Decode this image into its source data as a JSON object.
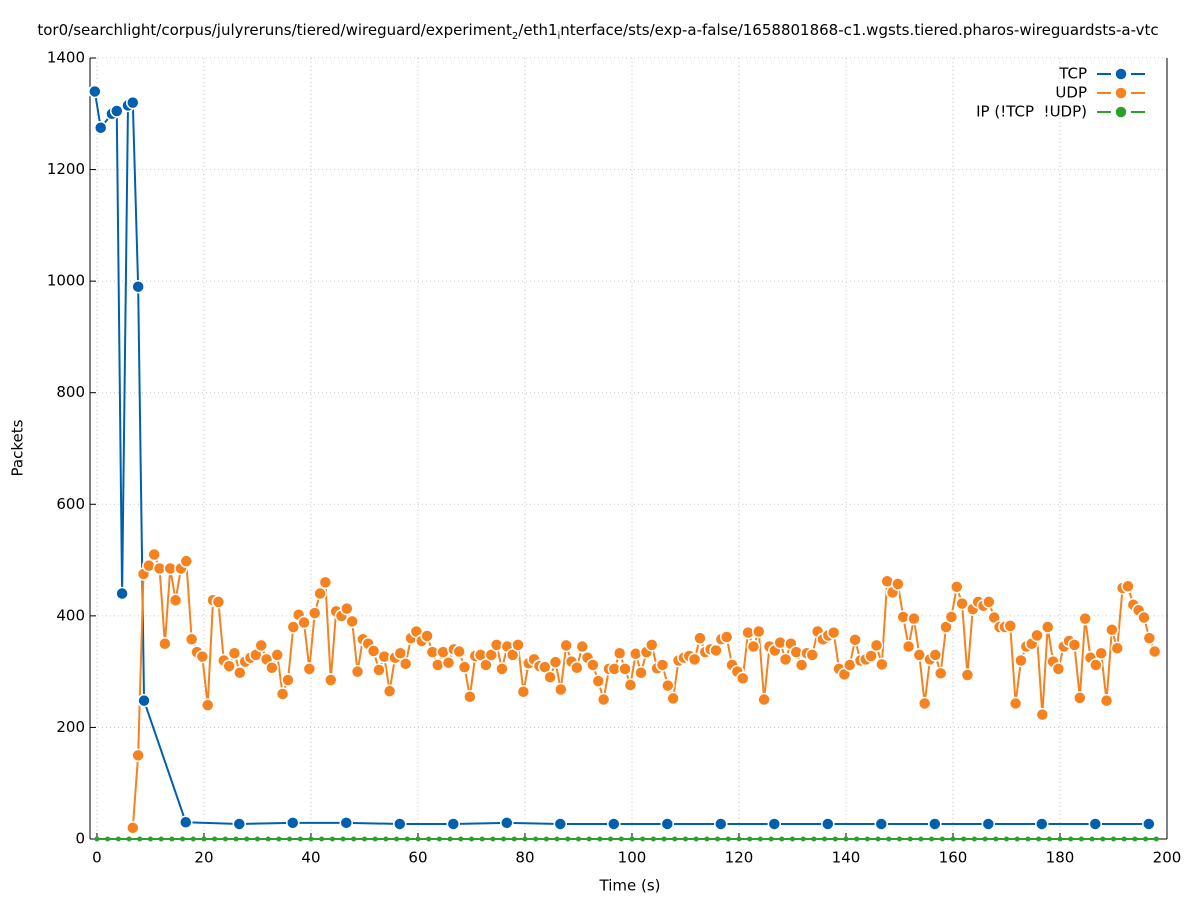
{
  "chart_data": {
    "type": "line",
    "title": [
      "tor0/searchlight/corpus/julyreruns/tiered/wireguard/experiment",
      "2",
      "/eth1",
      "i",
      "nterface/sts/exp-a-false/1658801868-c1.wgsts.tiered.pharos-wireguardsts-a-vtc"
    ],
    "xlabel": "Time (s)",
    "ylabel": "Packets",
    "xlim": [
      -1.3,
      200
    ],
    "ylim": [
      0,
      1400
    ],
    "xticks": [
      0,
      20,
      40,
      60,
      80,
      100,
      120,
      140,
      160,
      180,
      200
    ],
    "yticks": [
      0,
      200,
      400,
      600,
      800,
      1000,
      1200,
      1400
    ],
    "grid": true,
    "legend": "top-right",
    "series": [
      {
        "name": "TCP",
        "color": "#0060ad",
        "x": [
          -0.4,
          0.7,
          2.8,
          3.7,
          4.7,
          5.8,
          6.7,
          7.7,
          8.8,
          16.6,
          26.6,
          36.6,
          46.6,
          56.6,
          66.6,
          76.6,
          86.6,
          96.6,
          106.6,
          116.6,
          126.6,
          136.6,
          146.6,
          156.6,
          166.6,
          176.6,
          186.6,
          196.6
        ],
        "values": [
          1340,
          1275,
          1300,
          1305,
          440,
          1315,
          1320,
          990,
          248,
          30,
          27,
          29,
          29,
          27,
          27,
          29,
          27,
          27,
          27,
          27,
          27,
          27,
          27,
          27,
          27,
          27,
          27,
          27
        ]
      },
      {
        "name": "UDP",
        "color": "#f5821f",
        "x": [
          6.7,
          7.7,
          8.7,
          9.7,
          10.7,
          11.7,
          12.7,
          13.7,
          14.7,
          15.7,
          16.7,
          17.7,
          18.7,
          19.7,
          20.7,
          21.7,
          22.7,
          23.7,
          24.7,
          25.7,
          26.7,
          27.7,
          28.7,
          29.7,
          30.7,
          31.7,
          32.7,
          33.7,
          34.7,
          35.7,
          36.7,
          37.7,
          38.7,
          39.7,
          40.7,
          41.7,
          42.7,
          43.7,
          44.7,
          45.7,
          46.7,
          47.7,
          48.7,
          49.7,
          50.7,
          51.7,
          52.7,
          53.7,
          54.7,
          55.7,
          56.7,
          57.7,
          58.7,
          59.7,
          60.7,
          61.7,
          62.7,
          63.7,
          64.7,
          65.7,
          66.7,
          67.7,
          68.7,
          69.7,
          70.7,
          71.7,
          72.7,
          73.7,
          74.7,
          75.7,
          76.7,
          77.7,
          78.7,
          79.7,
          80.7,
          81.7,
          82.7,
          83.7,
          84.7,
          85.7,
          86.7,
          87.7,
          88.7,
          89.7,
          90.7,
          91.7,
          92.7,
          93.7,
          94.7,
          95.7,
          96.7,
          97.7,
          98.7,
          99.7,
          100.7,
          101.7,
          102.7,
          103.7,
          104.7,
          105.7,
          106.7,
          107.7,
          108.7,
          109.7,
          110.7,
          111.7,
          112.7,
          113.7,
          114.7,
          115.7,
          116.7,
          117.7,
          118.7,
          119.7,
          120.7,
          121.7,
          122.7,
          123.7,
          124.7,
          125.7,
          126.7,
          127.7,
          128.7,
          129.7,
          130.7,
          131.7,
          132.7,
          133.7,
          134.7,
          135.7,
          136.7,
          137.7,
          138.7,
          139.7,
          140.7,
          141.7,
          142.7,
          143.7,
          144.7,
          145.7,
          146.7,
          147.7,
          148.7,
          149.7,
          150.7,
          151.7,
          152.7,
          153.7,
          154.7,
          155.7,
          156.7,
          157.7,
          158.7,
          159.7,
          160.7,
          161.7,
          162.7,
          163.7,
          164.7,
          165.7,
          166.7,
          167.7,
          168.7,
          169.7,
          170.7,
          171.7,
          172.7,
          173.7,
          174.7,
          175.7,
          176.7,
          177.7,
          178.7,
          179.7,
          180.7,
          181.7,
          182.7,
          183.7,
          184.7,
          185.7,
          186.7,
          187.7,
          188.7,
          189.7,
          190.7,
          191.7,
          192.7,
          193.7,
          194.7,
          195.7,
          196.7,
          197.7
        ],
        "values": [
          20,
          150,
          475,
          490,
          510,
          485,
          350,
          485,
          428,
          485,
          498,
          358,
          335,
          327,
          240,
          428,
          425,
          320,
          310,
          333,
          298,
          318,
          325,
          330,
          347,
          322,
          307,
          330,
          260,
          285,
          380,
          402,
          388,
          305,
          405,
          440,
          460,
          285,
          408,
          400,
          413,
          390,
          300,
          358,
          350,
          337,
          303,
          327,
          265,
          325,
          333,
          314,
          360,
          372,
          355,
          364,
          335,
          312,
          335,
          316,
          340,
          336,
          308,
          255,
          328,
          330,
          312,
          330,
          348,
          305,
          345,
          330,
          348,
          264,
          315,
          322,
          310,
          308,
          290,
          317,
          268,
          347,
          318,
          307,
          345,
          325,
          312,
          283,
          250,
          305,
          305,
          333,
          305,
          276,
          332,
          298,
          335,
          348,
          306,
          312,
          275,
          252,
          320,
          325,
          328,
          322,
          360,
          335,
          340,
          338,
          358,
          362,
          312,
          300,
          288,
          370,
          345,
          372,
          250,
          345,
          338,
          352,
          322,
          350,
          335,
          312,
          333,
          330,
          372,
          358,
          365,
          370,
          305,
          295,
          312,
          357,
          320,
          322,
          328,
          347,
          313,
          462,
          442,
          457,
          398,
          345,
          395,
          330,
          243,
          322,
          330,
          297,
          380,
          398,
          452,
          422,
          294,
          412,
          425,
          418,
          425,
          397,
          380,
          380,
          382,
          243,
          320,
          345,
          350,
          365,
          223,
          380,
          318,
          305,
          345,
          355,
          348,
          253,
          395,
          325,
          312,
          333,
          248,
          375,
          342,
          450,
          453,
          420,
          410,
          397,
          360,
          336
        ]
      },
      {
        "name": "IP (!TCP  !UDP)",
        "color": "#2ca02c",
        "x": [
          0,
          2,
          4,
          6,
          8,
          10,
          12,
          14,
          16,
          18,
          20,
          22,
          24,
          26,
          28,
          30,
          32,
          34,
          36,
          38,
          40,
          42,
          44,
          46,
          48,
          50,
          52,
          54,
          56,
          58,
          60,
          62,
          64,
          66,
          68,
          70,
          72,
          74,
          76,
          78,
          80,
          82,
          84,
          86,
          88,
          90,
          92,
          94,
          96,
          98,
          100,
          102,
          104,
          106,
          108,
          110,
          112,
          114,
          116,
          118,
          120,
          122,
          124,
          126,
          128,
          130,
          132,
          134,
          136,
          138,
          140,
          142,
          144,
          146,
          148,
          150,
          152,
          154,
          156,
          158,
          160,
          162,
          164,
          166,
          168,
          170,
          172,
          174,
          176,
          178,
          180,
          182,
          184,
          186,
          188,
          190,
          192,
          194,
          196,
          198
        ],
        "values": [
          0,
          0,
          0,
          0,
          0,
          0,
          0,
          0,
          0,
          0,
          0,
          0,
          0,
          0,
          0,
          0,
          0,
          0,
          0,
          0,
          0,
          0,
          0,
          0,
          0,
          0,
          0,
          0,
          0,
          0,
          0,
          0,
          0,
          0,
          0,
          0,
          0,
          0,
          0,
          0,
          0,
          0,
          0,
          0,
          0,
          0,
          0,
          0,
          0,
          0,
          0,
          0,
          0,
          0,
          0,
          0,
          0,
          0,
          0,
          0,
          0,
          0,
          0,
          0,
          0,
          0,
          0,
          0,
          0,
          0,
          0,
          0,
          0,
          0,
          0,
          0,
          0,
          0,
          0,
          0,
          0,
          0,
          0,
          0,
          0,
          0,
          0,
          0,
          0,
          0,
          0,
          0,
          0,
          0,
          0,
          0,
          0,
          0,
          0,
          0
        ]
      }
    ]
  }
}
